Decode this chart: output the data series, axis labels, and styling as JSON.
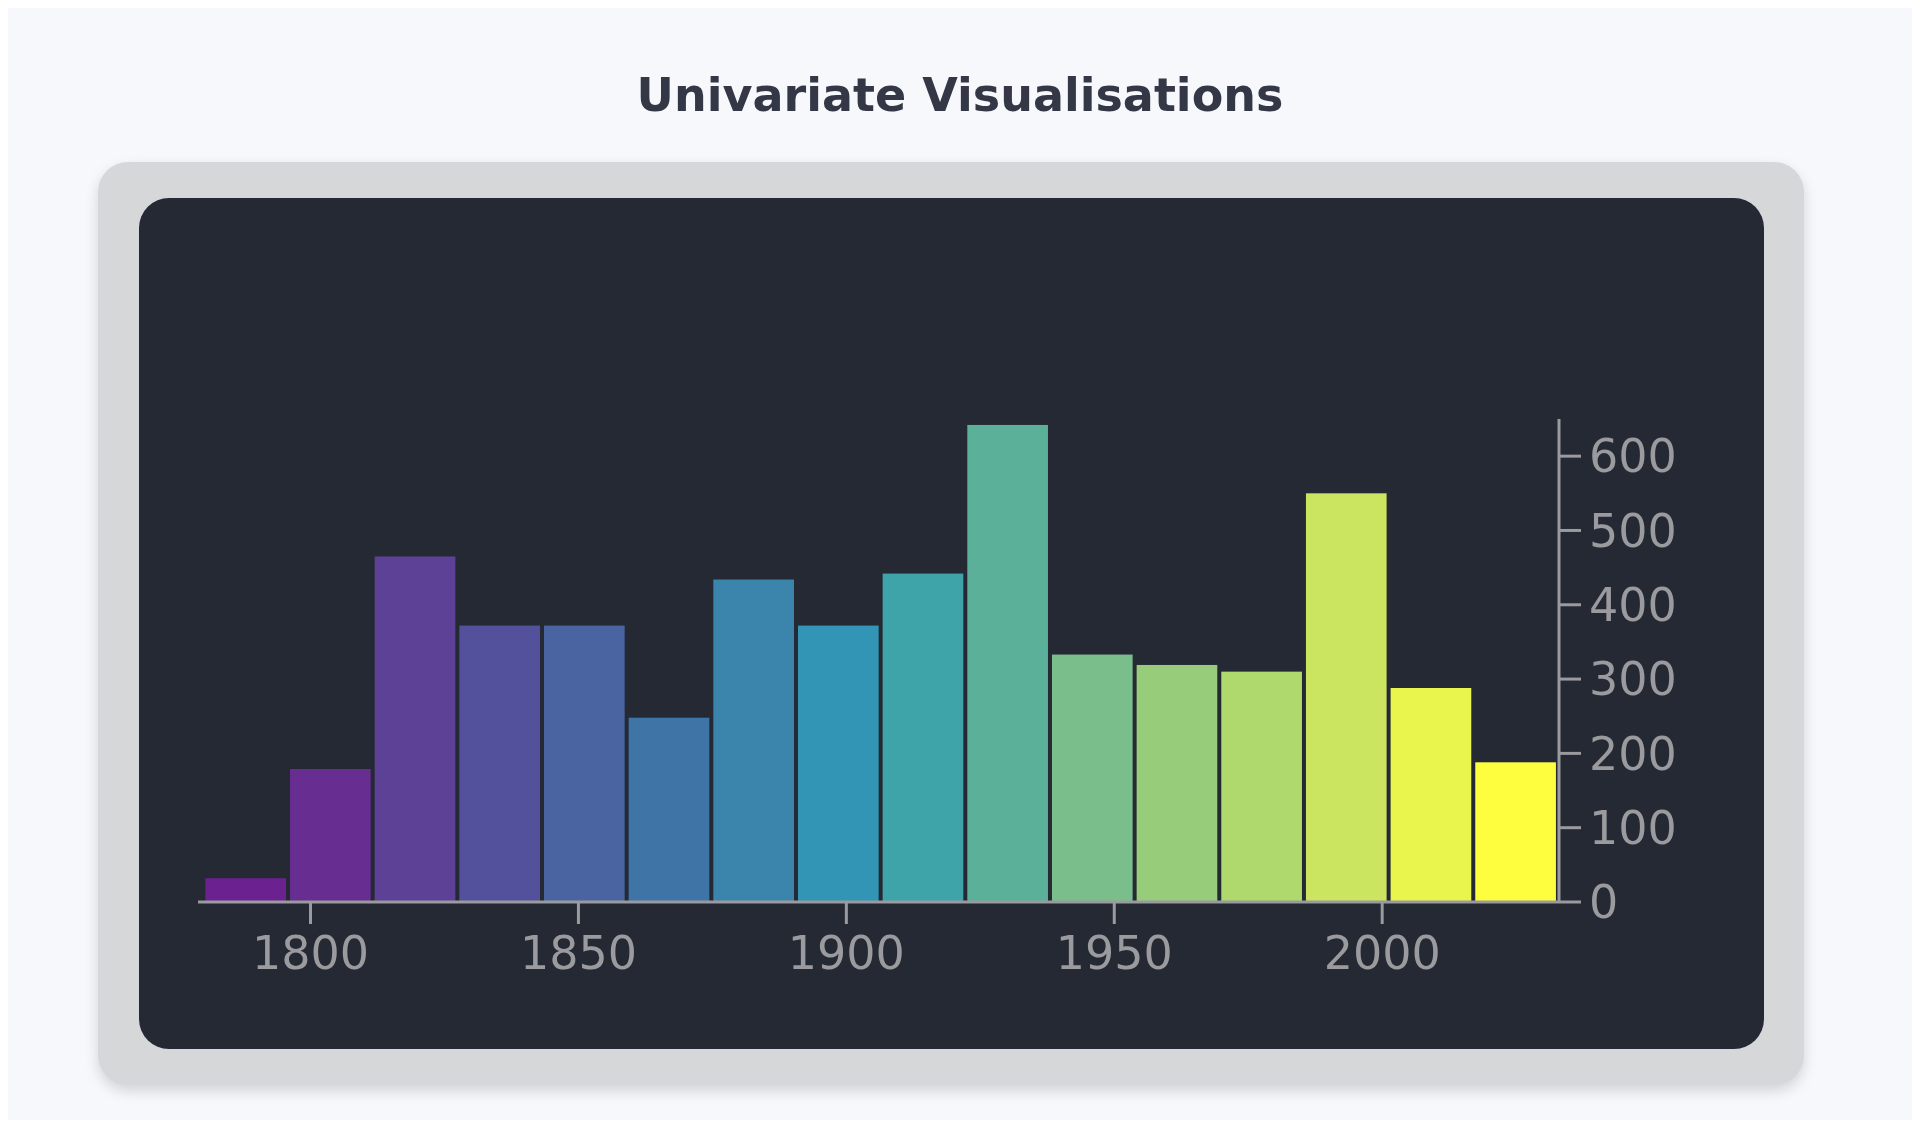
{
  "chart_data": {
    "type": "histogram",
    "title": "Univariate Visualisations",
    "bins": [
      1780.0,
      1795.8,
      1811.6,
      1827.4,
      1843.2,
      1859.0,
      1874.8,
      1890.6,
      1906.4,
      1922.2,
      1938.0,
      1953.8,
      1969.6,
      1985.4,
      2001.2,
      2017.0,
      2032.8
    ],
    "values": [
      32,
      179,
      465,
      372,
      372,
      248,
      434,
      372,
      442,
      642,
      333,
      319,
      310,
      550,
      288,
      188
    ],
    "colors": [
      "#6b218f",
      "#672d91",
      "#5d4196",
      "#54519c",
      "#4a64a2",
      "#3f74a6",
      "#3b85ac",
      "#3295b5",
      "#3fa3aa",
      "#5ab098",
      "#79be8b",
      "#96cc7a",
      "#b0d96d",
      "#cce561",
      "#e9f44c",
      "#fefe3f"
    ],
    "xlim": [
      1779,
      2033
    ],
    "xticks": [
      1800,
      1850,
      1900,
      1950,
      2000
    ],
    "ylim": [
      0,
      650
    ],
    "yticks": [
      0,
      100,
      200,
      300,
      400,
      500,
      600
    ]
  }
}
